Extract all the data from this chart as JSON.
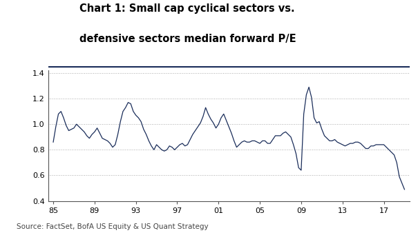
{
  "title_line1": "Chart 1: Small cap cyclical sectors vs.",
  "title_line2": "defensive sectors median forward P/E",
  "source": "Source: FactSet, BofA US Equity & US Quant Strategy",
  "line_color": "#1a2d5a",
  "background_color": "#ffffff",
  "ylim": [
    0.4,
    1.42
  ],
  "yticks": [
    0.4,
    0.6,
    0.8,
    1.0,
    1.2,
    1.4
  ],
  "xtick_labels": [
    "85",
    "89",
    "93",
    "97",
    "01",
    "05",
    "09",
    "13",
    "17"
  ],
  "xtick_positions": [
    1985,
    1989,
    1993,
    1997,
    2001,
    2005,
    2009,
    2013,
    2017
  ],
  "xlim": [
    1984.5,
    2019.5
  ],
  "x": [
    1985.0,
    1985.25,
    1985.5,
    1985.75,
    1986.0,
    1986.25,
    1986.5,
    1986.75,
    1987.0,
    1987.25,
    1987.5,
    1987.75,
    1988.0,
    1988.25,
    1988.5,
    1988.75,
    1989.0,
    1989.25,
    1989.5,
    1989.75,
    1990.0,
    1990.25,
    1990.5,
    1990.75,
    1991.0,
    1991.25,
    1991.5,
    1991.75,
    1992.0,
    1992.25,
    1992.5,
    1992.75,
    1993.0,
    1993.25,
    1993.5,
    1993.75,
    1994.0,
    1994.25,
    1994.5,
    1994.75,
    1995.0,
    1995.25,
    1995.5,
    1995.75,
    1996.0,
    1996.25,
    1996.5,
    1996.75,
    1997.0,
    1997.25,
    1997.5,
    1997.75,
    1998.0,
    1998.25,
    1998.5,
    1998.75,
    1999.0,
    1999.25,
    1999.5,
    1999.75,
    2000.0,
    2000.25,
    2000.5,
    2000.75,
    2001.0,
    2001.25,
    2001.5,
    2001.75,
    2002.0,
    2002.25,
    2002.5,
    2002.75,
    2003.0,
    2003.25,
    2003.5,
    2003.75,
    2004.0,
    2004.25,
    2004.5,
    2004.75,
    2005.0,
    2005.25,
    2005.5,
    2005.75,
    2006.0,
    2006.25,
    2006.5,
    2006.75,
    2007.0,
    2007.25,
    2007.5,
    2007.75,
    2008.0,
    2008.25,
    2008.5,
    2008.75,
    2009.0,
    2009.25,
    2009.5,
    2009.75,
    2010.0,
    2010.25,
    2010.5,
    2010.75,
    2011.0,
    2011.25,
    2011.5,
    2011.75,
    2012.0,
    2012.25,
    2012.5,
    2012.75,
    2013.0,
    2013.25,
    2013.5,
    2013.75,
    2014.0,
    2014.25,
    2014.5,
    2014.75,
    2015.0,
    2015.25,
    2015.5,
    2015.75,
    2016.0,
    2016.25,
    2016.5,
    2016.75,
    2017.0,
    2017.25,
    2017.5,
    2017.75,
    2018.0,
    2018.25,
    2018.5,
    2018.75,
    2019.0
  ],
  "y": [
    0.86,
    0.98,
    1.08,
    1.1,
    1.05,
    0.99,
    0.95,
    0.96,
    0.97,
    1.0,
    0.98,
    0.96,
    0.94,
    0.91,
    0.89,
    0.92,
    0.94,
    0.97,
    0.93,
    0.89,
    0.88,
    0.87,
    0.85,
    0.82,
    0.84,
    0.92,
    1.02,
    1.1,
    1.13,
    1.17,
    1.16,
    1.1,
    1.07,
    1.05,
    1.02,
    0.96,
    0.92,
    0.87,
    0.83,
    0.8,
    0.84,
    0.82,
    0.8,
    0.79,
    0.8,
    0.83,
    0.82,
    0.8,
    0.82,
    0.84,
    0.85,
    0.83,
    0.84,
    0.88,
    0.92,
    0.95,
    0.98,
    1.01,
    1.06,
    1.13,
    1.08,
    1.04,
    1.01,
    0.97,
    1.0,
    1.05,
    1.08,
    1.03,
    0.98,
    0.93,
    0.87,
    0.82,
    0.84,
    0.86,
    0.87,
    0.86,
    0.86,
    0.87,
    0.87,
    0.86,
    0.85,
    0.87,
    0.87,
    0.85,
    0.85,
    0.88,
    0.91,
    0.91,
    0.91,
    0.93,
    0.94,
    0.92,
    0.9,
    0.84,
    0.77,
    0.66,
    0.64,
    1.08,
    1.23,
    1.29,
    1.21,
    1.05,
    1.01,
    1.02,
    0.96,
    0.91,
    0.89,
    0.87,
    0.87,
    0.88,
    0.86,
    0.85,
    0.84,
    0.83,
    0.84,
    0.85,
    0.85,
    0.86,
    0.86,
    0.85,
    0.83,
    0.81,
    0.81,
    0.83,
    0.83,
    0.84,
    0.84,
    0.84,
    0.84,
    0.82,
    0.8,
    0.78,
    0.76,
    0.7,
    0.59,
    0.54,
    0.49
  ]
}
